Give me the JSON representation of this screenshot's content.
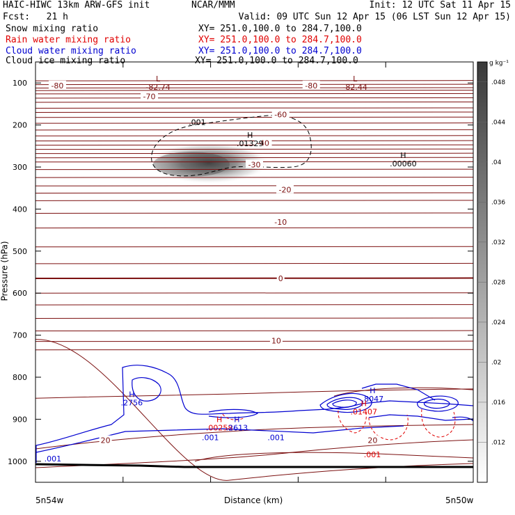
{
  "header": {
    "title": "HAIC-HIWC 13km ARW-GFS init",
    "center": "NCAR/MMM",
    "init": "Init: 12 UTC Sat 11 Apr 15",
    "fcst": "Fcst:   21 h",
    "valid": "Valid: 09 UTC Sun 12 Apr 15 (06 LST Sun 12 Apr 15)"
  },
  "fields": [
    {
      "name": "Snow mixing ratio",
      "xy": "XY= 251.0,100.0 to 284.7,100.0",
      "color": "#000000"
    },
    {
      "name": "Rain water mixing ratio",
      "xy": "XY= 251.0,100.0 to 284.7,100.0",
      "color": "#e00000"
    },
    {
      "name": "Cloud water mixing ratio",
      "xy": "XY= 251.0,100.0 to 284.7,100.0",
      "color": "#0000d0"
    },
    {
      "name": "Cloud ice mixing ratio",
      "xy": "XY= 251.0,100.0 to 284.7,100.0",
      "color": "#000000"
    }
  ],
  "colors": {
    "temperature": "#7b0f0f",
    "rain": "#e00000",
    "cloud_water": "#0000d0",
    "shade_dark": "#3c3c3c"
  },
  "chart_data": {
    "type": "cross-section",
    "xlabel": "Distance (km)",
    "ylabel": "Pressure (hPa)",
    "x_endpoints": [
      "5n54w",
      "5n50w"
    ],
    "ylim": [
      1050,
      50
    ],
    "yticks": [
      100,
      200,
      300,
      400,
      500,
      600,
      700,
      800,
      900,
      1000
    ],
    "colorbar": {
      "unit": "g kg⁻¹",
      "ticks": [
        ".012",
        ".016",
        ".02",
        ".024",
        ".028",
        ".032",
        ".036",
        ".04",
        ".044",
        ".048"
      ],
      "min": 0.008,
      "max": 0.05
    },
    "temperature_labels": [
      {
        "text": "-80",
        "p": 106,
        "x": 0.05
      },
      {
        "text": "-80",
        "p": 106,
        "x": 0.63
      },
      {
        "text": "-70",
        "p": 132,
        "x": 0.26
      },
      {
        "text": "-60",
        "p": 175,
        "x": 0.56
      },
      {
        "text": "-40",
        "p": 243,
        "x": 0.52
      },
      {
        "text": "-30",
        "p": 294,
        "x": 0.5
      },
      {
        "text": "-20",
        "p": 354,
        "x": 0.57
      },
      {
        "text": "-10",
        "p": 431,
        "x": 0.56
      },
      {
        "text": "0",
        "p": 565,
        "x": 0.56
      },
      {
        "text": "10",
        "p": 713,
        "x": 0.55
      },
      {
        "text": "20",
        "p": 950,
        "x": 0.16
      },
      {
        "text": "20",
        "p": 950,
        "x": 0.77
      }
    ],
    "extrema": [
      {
        "marker": "L",
        "value": "-82.74",
        "p": 103,
        "x": 0.28,
        "color": "#7b0f0f"
      },
      {
        "marker": "L",
        "value": "-82.44",
        "p": 103,
        "x": 0.73,
        "color": "#7b0f0f"
      },
      {
        "marker": "H",
        "value": ".01329",
        "p": 237,
        "x": 0.49,
        "color": "#000000"
      },
      {
        "marker": "H",
        "value": ".00060",
        "p": 285,
        "x": 0.84,
        "color": "#000000"
      },
      {
        "marker": "H",
        "value": ".2756",
        "p": 854,
        "x": 0.22,
        "color": "#0000d0"
      },
      {
        "marker": "H",
        "value": ".8047",
        "p": 845,
        "x": 0.77,
        "color": "#0000d0"
      },
      {
        "marker": "H",
        "value": ".01407",
        "p": 875,
        "x": 0.75,
        "color": "#e00000"
      },
      {
        "marker": "H",
        "value": ".00258",
        "p": 913,
        "x": 0.42,
        "color": "#e00000"
      },
      {
        "marker": "H",
        "value": ".2613",
        "p": 913,
        "x": 0.46,
        "color": "#0000d0"
      }
    ],
    "contour_labels": [
      {
        "text": ".001",
        "p": 200,
        "x": 0.35,
        "color": "#000000"
      },
      {
        "text": ".001",
        "p": 1000,
        "x": 0.02,
        "color": "#0000d0"
      },
      {
        "text": ".001",
        "p": 950,
        "x": 0.38,
        "color": "#0000d0"
      },
      {
        "text": ".001",
        "p": 950,
        "x": 0.53,
        "color": "#0000d0"
      },
      {
        "text": ".001",
        "p": 990,
        "x": 0.75,
        "color": "#e00000"
      }
    ]
  }
}
